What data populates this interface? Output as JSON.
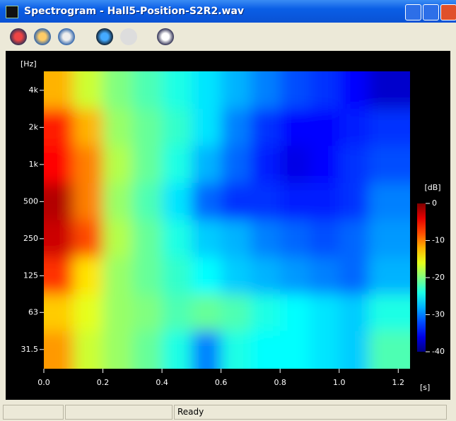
{
  "window": {
    "title": "Spectrogram - Hall5-Position-S2R2.wav",
    "status": "Ready"
  },
  "chart_data": {
    "type": "heatmap",
    "y_label": "[Hz]",
    "x_label": "[s]",
    "colorbar_label": "[dB]",
    "x": [
      0.05,
      0.15,
      0.25,
      0.35,
      0.45,
      0.55,
      0.65,
      0.75,
      0.85,
      0.95,
      1.05,
      1.15
    ],
    "y": [
      31.5,
      63,
      125,
      250,
      500,
      1000,
      2000,
      4000
    ],
    "z": [
      [
        -11,
        -17,
        -19,
        -21,
        -24,
        -30,
        -24,
        -25,
        -25,
        -26,
        -27,
        -22
      ],
      [
        -13,
        -16,
        -19,
        -20,
        -22,
        -21,
        -22,
        -24,
        -25,
        -26,
        -27,
        -24
      ],
      [
        -7,
        -14,
        -19,
        -21,
        -23,
        -25,
        -27,
        -28,
        -29,
        -30,
        -31,
        -28
      ],
      [
        -3,
        -8,
        -18,
        -21,
        -24,
        -27,
        -28,
        -30,
        -31,
        -32,
        -31,
        -29
      ],
      [
        -2,
        -10,
        -19,
        -22,
        -26,
        -31,
        -33,
        -33,
        -34,
        -34,
        -33,
        -30
      ],
      [
        -5,
        -10,
        -18,
        -21,
        -24,
        -28,
        -31,
        -34,
        -36,
        -35,
        -33,
        -32
      ],
      [
        -6,
        -12,
        -19,
        -21,
        -23,
        -26,
        -30,
        -33,
        -35,
        -35,
        -34,
        -33
      ],
      [
        -12,
        -17,
        -20,
        -22,
        -24,
        -26,
        -28,
        -30,
        -32,
        -33,
        -35,
        -37
      ]
    ],
    "colormap": "jet",
    "xlim": [
      0,
      1.24
    ],
    "xticks": [
      {
        "value": 0,
        "label": "0.0"
      },
      0.2,
      0.4,
      0.6,
      0.8,
      {
        "value": 1,
        "label": "1.0"
      },
      1.2
    ],
    "ylim": [
      22,
      5700
    ],
    "log_y": true,
    "yticks": [
      {
        "value": 31.5,
        "label": "31.5"
      },
      63,
      125,
      250,
      500,
      {
        "value": 1000,
        "label": "1k"
      },
      {
        "value": 2000,
        "label": "2k"
      },
      {
        "value": 4000,
        "label": "4k"
      }
    ],
    "zlim": [
      -40,
      0
    ],
    "zticks": [
      -40,
      -30,
      -20,
      -10,
      0
    ]
  }
}
